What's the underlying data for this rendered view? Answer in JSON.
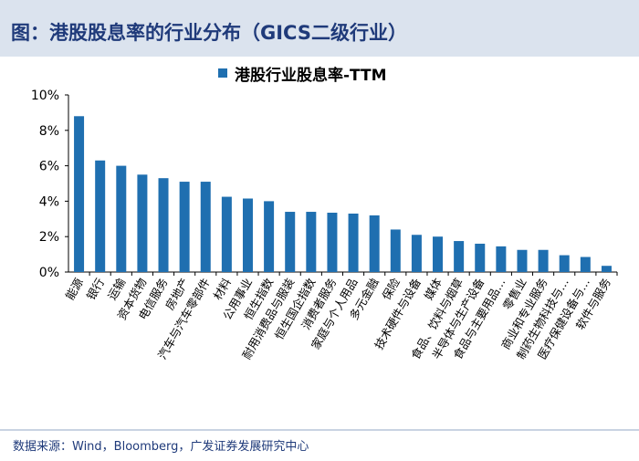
{
  "header": {
    "title": "图：港股股息率的行业分布（GICS二级行业）"
  },
  "source": "数据来源：Wind，Bloomberg，广发证券发展研究中心",
  "colors": {
    "bar": "#1f6fb0",
    "header_bg": "#dbe3ee",
    "header_text": "#1f3a7a"
  },
  "chart_data": {
    "type": "bar",
    "title": "",
    "xlabel": "",
    "ylabel": "",
    "ylim": [
      0,
      10
    ],
    "yticks": [
      "0%",
      "2%",
      "4%",
      "6%",
      "8%",
      "10%"
    ],
    "grid": false,
    "legend_position": "top-center",
    "categories": [
      "能源",
      "银行",
      "运输",
      "资本货物",
      "电信服务",
      "房地产",
      "汽车与汽车零部件",
      "材料",
      "公用事业",
      "恒生指数",
      "耐用消费品与服装",
      "恒生国企指数",
      "消费者服务",
      "家庭与个人用品",
      "多元金融",
      "保险",
      "技术硬件与设备",
      "媒体",
      "食品、饮料与烟草",
      "半导体与生产设备",
      "食品与主要用品…",
      "零售业",
      "商业和专业服务",
      "制药生物科技与…",
      "医疗保健设备与…",
      "软件与服务"
    ],
    "series": [
      {
        "name": "港股行业股息率-TTM",
        "values": [
          8.8,
          6.3,
          6.0,
          5.5,
          5.3,
          5.1,
          5.1,
          4.25,
          4.15,
          4.0,
          3.4,
          3.4,
          3.35,
          3.3,
          3.2,
          2.4,
          2.1,
          2.0,
          1.75,
          1.6,
          1.45,
          1.25,
          1.25,
          0.95,
          0.85,
          0.35
        ]
      }
    ]
  }
}
